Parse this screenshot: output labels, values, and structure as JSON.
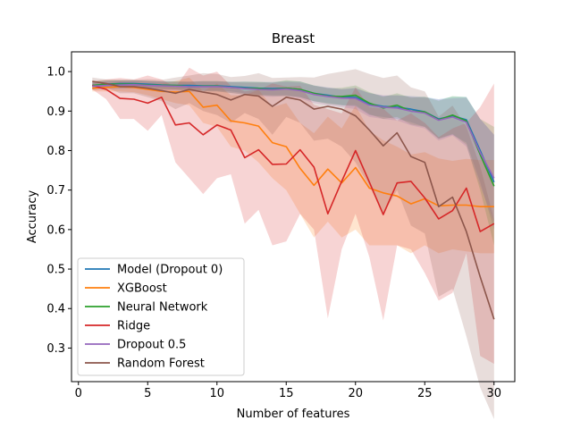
{
  "chart_data": {
    "type": "line",
    "title": "Breast",
    "xlabel": "Number of features",
    "ylabel": "Accuracy",
    "xlim": [
      -0.5,
      31.5
    ],
    "ylim": [
      0.215,
      1.05
    ],
    "xticks": [
      0,
      5,
      10,
      15,
      20,
      25,
      30
    ],
    "yticks": [
      0.3,
      0.4,
      0.5,
      0.6,
      0.7,
      0.8,
      0.9,
      1.0
    ],
    "ytick_labels": [
      "0.3",
      "0.4",
      "0.5",
      "0.6",
      "0.7",
      "0.8",
      "0.9",
      "1.0"
    ],
    "grid": false,
    "legend_position": "lower left",
    "x": [
      1,
      2,
      3,
      4,
      5,
      6,
      7,
      8,
      9,
      10,
      11,
      12,
      13,
      14,
      15,
      16,
      17,
      18,
      19,
      20,
      21,
      22,
      23,
      24,
      25,
      26,
      27,
      28,
      29,
      30
    ],
    "series": [
      {
        "name": "Model (Dropout 0)",
        "color": "#1f77b4",
        "values": [
          0.965,
          0.968,
          0.97,
          0.97,
          0.968,
          0.966,
          0.965,
          0.965,
          0.964,
          0.964,
          0.962,
          0.96,
          0.958,
          0.957,
          0.958,
          0.955,
          0.945,
          0.94,
          0.935,
          0.935,
          0.918,
          0.912,
          0.91,
          0.905,
          0.898,
          0.88,
          0.888,
          0.878,
          0.8,
          0.72
        ],
        "lower": [
          0.955,
          0.96,
          0.962,
          0.962,
          0.96,
          0.957,
          0.955,
          0.955,
          0.952,
          0.952,
          0.95,
          0.945,
          0.942,
          0.94,
          0.94,
          0.935,
          0.925,
          0.92,
          0.915,
          0.912,
          0.89,
          0.885,
          0.88,
          0.872,
          0.86,
          0.83,
          0.84,
          0.82,
          0.72,
          0.6
        ],
        "upper": [
          0.975,
          0.976,
          0.978,
          0.978,
          0.976,
          0.975,
          0.975,
          0.975,
          0.976,
          0.976,
          0.974,
          0.975,
          0.974,
          0.974,
          0.976,
          0.975,
          0.965,
          0.96,
          0.955,
          0.958,
          0.946,
          0.939,
          0.94,
          0.938,
          0.936,
          0.93,
          0.936,
          0.936,
          0.88,
          0.84
        ]
      },
      {
        "name": "XGBoost",
        "color": "#ff7f0e",
        "values": [
          0.958,
          0.96,
          0.962,
          0.96,
          0.955,
          0.95,
          0.948,
          0.95,
          0.91,
          0.915,
          0.875,
          0.87,
          0.862,
          0.82,
          0.81,
          0.755,
          0.712,
          0.753,
          0.718,
          0.757,
          0.705,
          0.693,
          0.685,
          0.665,
          0.678,
          0.66,
          0.662,
          0.662,
          0.658,
          0.658
        ],
        "lower": [
          0.95,
          0.95,
          0.95,
          0.948,
          0.94,
          0.93,
          0.92,
          0.915,
          0.87,
          0.86,
          0.81,
          0.8,
          0.77,
          0.73,
          0.7,
          0.64,
          0.58,
          0.62,
          0.58,
          0.6,
          0.56,
          0.56,
          0.56,
          0.54,
          0.56,
          0.54,
          0.55,
          0.545,
          0.54,
          0.54
        ],
        "upper": [
          0.966,
          0.97,
          0.974,
          0.972,
          0.97,
          0.97,
          0.976,
          0.985,
          0.95,
          0.97,
          0.94,
          0.94,
          0.954,
          0.91,
          0.92,
          0.87,
          0.844,
          0.886,
          0.856,
          0.914,
          0.85,
          0.826,
          0.81,
          0.79,
          0.796,
          0.78,
          0.774,
          0.779,
          0.776,
          0.776
        ]
      },
      {
        "name": "Neural Network",
        "color": "#2ca02c",
        "values": [
          0.965,
          0.968,
          0.968,
          0.968,
          0.966,
          0.965,
          0.965,
          0.962,
          0.963,
          0.963,
          0.96,
          0.958,
          0.957,
          0.955,
          0.958,
          0.955,
          0.945,
          0.938,
          0.937,
          0.94,
          0.92,
          0.908,
          0.915,
          0.9,
          0.898,
          0.878,
          0.89,
          0.875,
          0.79,
          0.71
        ],
        "lower": [
          0.955,
          0.958,
          0.958,
          0.958,
          0.955,
          0.955,
          0.955,
          0.95,
          0.95,
          0.95,
          0.946,
          0.942,
          0.94,
          0.938,
          0.938,
          0.935,
          0.925,
          0.918,
          0.915,
          0.915,
          0.892,
          0.88,
          0.885,
          0.866,
          0.86,
          0.83,
          0.842,
          0.815,
          0.7,
          0.56
        ],
        "upper": [
          0.975,
          0.978,
          0.978,
          0.978,
          0.977,
          0.975,
          0.975,
          0.974,
          0.976,
          0.976,
          0.974,
          0.974,
          0.974,
          0.972,
          0.978,
          0.975,
          0.965,
          0.958,
          0.959,
          0.965,
          0.948,
          0.936,
          0.945,
          0.934,
          0.936,
          0.926,
          0.938,
          0.935,
          0.88,
          0.86
        ]
      },
      {
        "name": "Ridge",
        "color": "#d62728",
        "values": [
          0.965,
          0.955,
          0.932,
          0.93,
          0.92,
          0.935,
          0.865,
          0.87,
          0.84,
          0.865,
          0.852,
          0.782,
          0.802,
          0.765,
          0.766,
          0.802,
          0.758,
          0.64,
          0.722,
          0.8,
          0.72,
          0.638,
          0.718,
          0.722,
          0.68,
          0.627,
          0.648,
          0.705,
          0.595,
          0.615
        ],
        "lower": [
          0.955,
          0.93,
          0.88,
          0.88,
          0.85,
          0.89,
          0.77,
          0.73,
          0.69,
          0.73,
          0.74,
          0.615,
          0.65,
          0.56,
          0.57,
          0.64,
          0.6,
          0.375,
          0.55,
          0.64,
          0.53,
          0.37,
          0.56,
          0.55,
          0.49,
          0.42,
          0.44,
          0.54,
          0.28,
          0.26
        ],
        "upper": [
          0.975,
          0.98,
          0.984,
          0.98,
          0.99,
          0.98,
          0.96,
          1.01,
          0.99,
          1.0,
          0.964,
          0.95,
          0.954,
          0.97,
          0.962,
          0.964,
          0.916,
          0.905,
          0.894,
          0.96,
          0.91,
          0.906,
          0.876,
          0.894,
          0.87,
          0.834,
          0.856,
          0.87,
          0.91,
          0.97
        ]
      },
      {
        "name": "Dropout 0.5",
        "color": "#9467bd",
        "values": [
          0.963,
          0.965,
          0.966,
          0.967,
          0.965,
          0.964,
          0.963,
          0.962,
          0.962,
          0.962,
          0.96,
          0.957,
          0.955,
          0.954,
          0.956,
          0.952,
          0.942,
          0.937,
          0.933,
          0.932,
          0.915,
          0.91,
          0.908,
          0.9,
          0.895,
          0.877,
          0.885,
          0.872,
          0.795,
          0.73
        ],
        "lower": [
          0.953,
          0.955,
          0.956,
          0.957,
          0.954,
          0.953,
          0.952,
          0.95,
          0.95,
          0.95,
          0.946,
          0.942,
          0.938,
          0.936,
          0.938,
          0.932,
          0.92,
          0.915,
          0.91,
          0.905,
          0.885,
          0.88,
          0.876,
          0.864,
          0.856,
          0.825,
          0.838,
          0.81,
          0.71,
          0.62
        ],
        "upper": [
          0.973,
          0.975,
          0.976,
          0.977,
          0.976,
          0.975,
          0.974,
          0.974,
          0.974,
          0.974,
          0.974,
          0.972,
          0.972,
          0.972,
          0.974,
          0.972,
          0.964,
          0.959,
          0.956,
          0.959,
          0.945,
          0.94,
          0.94,
          0.936,
          0.934,
          0.929,
          0.932,
          0.934,
          0.88,
          0.84
        ]
      },
      {
        "name": "Random Forest",
        "color": "#8c564b",
        "values": [
          0.975,
          0.97,
          0.962,
          0.962,
          0.958,
          0.952,
          0.945,
          0.955,
          0.948,
          0.942,
          0.928,
          0.942,
          0.938,
          0.912,
          0.935,
          0.928,
          0.905,
          0.912,
          0.905,
          0.888,
          0.852,
          0.812,
          0.845,
          0.785,
          0.77,
          0.658,
          0.682,
          0.595,
          0.48,
          0.373
        ],
        "lower": [
          0.965,
          0.96,
          0.945,
          0.945,
          0.935,
          0.925,
          0.905,
          0.92,
          0.9,
          0.89,
          0.87,
          0.895,
          0.88,
          0.84,
          0.885,
          0.87,
          0.825,
          0.83,
          0.81,
          0.77,
          0.71,
          0.64,
          0.7,
          0.61,
          0.59,
          0.43,
          0.45,
          0.33,
          0.2,
          0.12
        ],
        "upper": [
          0.985,
          0.98,
          0.979,
          0.979,
          0.981,
          0.979,
          0.985,
          0.99,
          0.996,
          0.994,
          0.986,
          0.989,
          0.996,
          0.984,
          0.985,
          0.986,
          0.985,
          0.994,
          1.0,
          1.006,
          0.994,
          0.984,
          0.99,
          0.96,
          0.95,
          0.886,
          0.914,
          0.86,
          0.76,
          0.626
        ]
      }
    ]
  }
}
